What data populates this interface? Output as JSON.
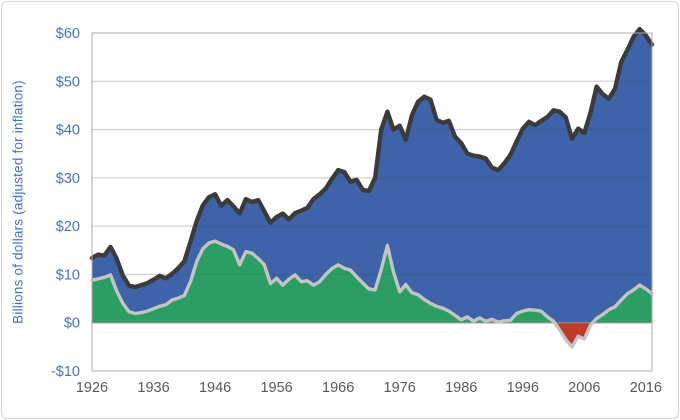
{
  "card": {
    "background": "#ffffff",
    "border_color": "#d6d6d6"
  },
  "colors": {
    "gridline": "#d9d9d9",
    "gridline_overlay": "rgba(0,0,0,0.08)",
    "plot_border": "#ababab",
    "zero_line": "#8f8f8f",
    "y_tick_label": "#4472c4",
    "x_tick_label": "#595959",
    "blue_area": "#3e63a9",
    "green_area": "#2d9e63",
    "red_negative_area": "#be3b26",
    "dark_outline": "#3b3b3b",
    "gray_outline": "#c4c4c4"
  },
  "chart_data": {
    "type": "area",
    "title": "",
    "ylabel": "Billions of dollars (adjusted for inflation)",
    "xlabel": "",
    "ylim": [
      -10,
      60
    ],
    "xlim": [
      1926,
      2017
    ],
    "grid": true,
    "legend": "none",
    "y_ticks": [
      {
        "v": 60,
        "label": "$60"
      },
      {
        "v": 50,
        "label": "$50"
      },
      {
        "v": 40,
        "label": "$40"
      },
      {
        "v": 30,
        "label": "$30"
      },
      {
        "v": 20,
        "label": "$20"
      },
      {
        "v": 10,
        "label": "$10"
      },
      {
        "v": 0,
        "label": "$0"
      },
      {
        "v": -10,
        "label": "-$10"
      }
    ],
    "x_ticks": [
      {
        "v": 1926,
        "label": "1926"
      },
      {
        "v": 1936,
        "label": "1936"
      },
      {
        "v": 1946,
        "label": "1946"
      },
      {
        "v": 1956,
        "label": "1956"
      },
      {
        "v": 1966,
        "label": "1966"
      },
      {
        "v": 1976,
        "label": "1976"
      },
      {
        "v": 1986,
        "label": "1986"
      },
      {
        "v": 1996,
        "label": "1996"
      },
      {
        "v": 2006,
        "label": "2006"
      },
      {
        "v": 2016,
        "label": "2016"
      }
    ],
    "x": [
      1926,
      1927,
      1928,
      1929,
      1930,
      1931,
      1932,
      1933,
      1934,
      1935,
      1936,
      1937,
      1938,
      1939,
      1940,
      1941,
      1942,
      1943,
      1944,
      1945,
      1946,
      1947,
      1948,
      1949,
      1950,
      1951,
      1952,
      1953,
      1954,
      1955,
      1956,
      1957,
      1958,
      1959,
      1960,
      1961,
      1962,
      1963,
      1964,
      1965,
      1966,
      1967,
      1968,
      1969,
      1970,
      1971,
      1972,
      1973,
      1974,
      1975,
      1976,
      1977,
      1978,
      1979,
      1980,
      1981,
      1982,
      1983,
      1984,
      1985,
      1986,
      1987,
      1988,
      1989,
      1990,
      1991,
      1992,
      1993,
      1994,
      1995,
      1996,
      1997,
      1998,
      1999,
      2000,
      2001,
      2002,
      2003,
      2004,
      2005,
      2006,
      2007,
      2008,
      2009,
      2010,
      2011,
      2012,
      2013,
      2014,
      2015,
      2016,
      2017
    ],
    "series": [
      {
        "name": "total-blue",
        "area_color": "#3e63a9",
        "line_color": "#3b3b3b",
        "values": [
          13.4,
          14.1,
          13.9,
          15.7,
          13.3,
          9.8,
          7.7,
          7.4,
          7.8,
          8.2,
          8.9,
          9.7,
          9.2,
          10.1,
          11.3,
          12.7,
          16.8,
          21,
          24.3,
          26,
          26.6,
          24.2,
          25.4,
          24.1,
          22.6,
          25.6,
          25,
          25.4,
          23.1,
          20.7,
          21.9,
          22.6,
          21.4,
          22.7,
          23.2,
          23.8,
          25.6,
          26.6,
          27.8,
          29.8,
          31.6,
          31.2,
          29.2,
          29.6,
          27.5,
          27.3,
          30,
          40,
          43.7,
          40,
          40.8,
          37.9,
          43,
          45.8,
          46.8,
          46.2,
          42,
          41.4,
          41.8,
          38.5,
          37.2,
          35,
          34.6,
          34.4,
          34,
          32.1,
          31.6,
          33,
          34.8,
          37.5,
          40.2,
          41.6,
          40.9,
          41.8,
          42.6,
          44,
          43.7,
          42.5,
          38.1,
          40.2,
          39.3,
          43.5,
          48.9,
          47.3,
          46.4,
          48.5,
          54,
          56.5,
          59.2,
          60.8,
          59.5,
          57.6
        ]
      },
      {
        "name": "component-green",
        "area_color": "#2d9e63",
        "negative_area_color": "#be3b26",
        "line_color": "#c4c4c4",
        "values": [
          8.8,
          9.1,
          9.4,
          9.9,
          6.6,
          4,
          2.3,
          1.9,
          2.1,
          2.4,
          2.9,
          3.4,
          3.7,
          4.7,
          5.1,
          5.6,
          8.5,
          12.6,
          15.3,
          16.5,
          16.9,
          16.3,
          15.8,
          15.1,
          12,
          14.7,
          14.4,
          13.3,
          12,
          8.1,
          9.2,
          7.8,
          9,
          9.9,
          8.5,
          8.7,
          7.8,
          8.5,
          10,
          11.2,
          12,
          11.3,
          10.9,
          9.5,
          8.2,
          7,
          6.8,
          11,
          16,
          10.5,
          6.4,
          7.9,
          6.2,
          5.8,
          4.8,
          4,
          3.4,
          3,
          2.4,
          1.5,
          0.6,
          1.2,
          0.3,
          1,
          0.3,
          0.7,
          0.1,
          0.4,
          0.5,
          1.9,
          2.4,
          2.7,
          2.6,
          2.4,
          1.2,
          0.3,
          -1.5,
          -3.5,
          -5,
          -2.8,
          -3.4,
          -0.5,
          0.9,
          1.7,
          2.7,
          3.3,
          4.7,
          6,
          6.8,
          7.8,
          7,
          6
        ]
      }
    ]
  }
}
